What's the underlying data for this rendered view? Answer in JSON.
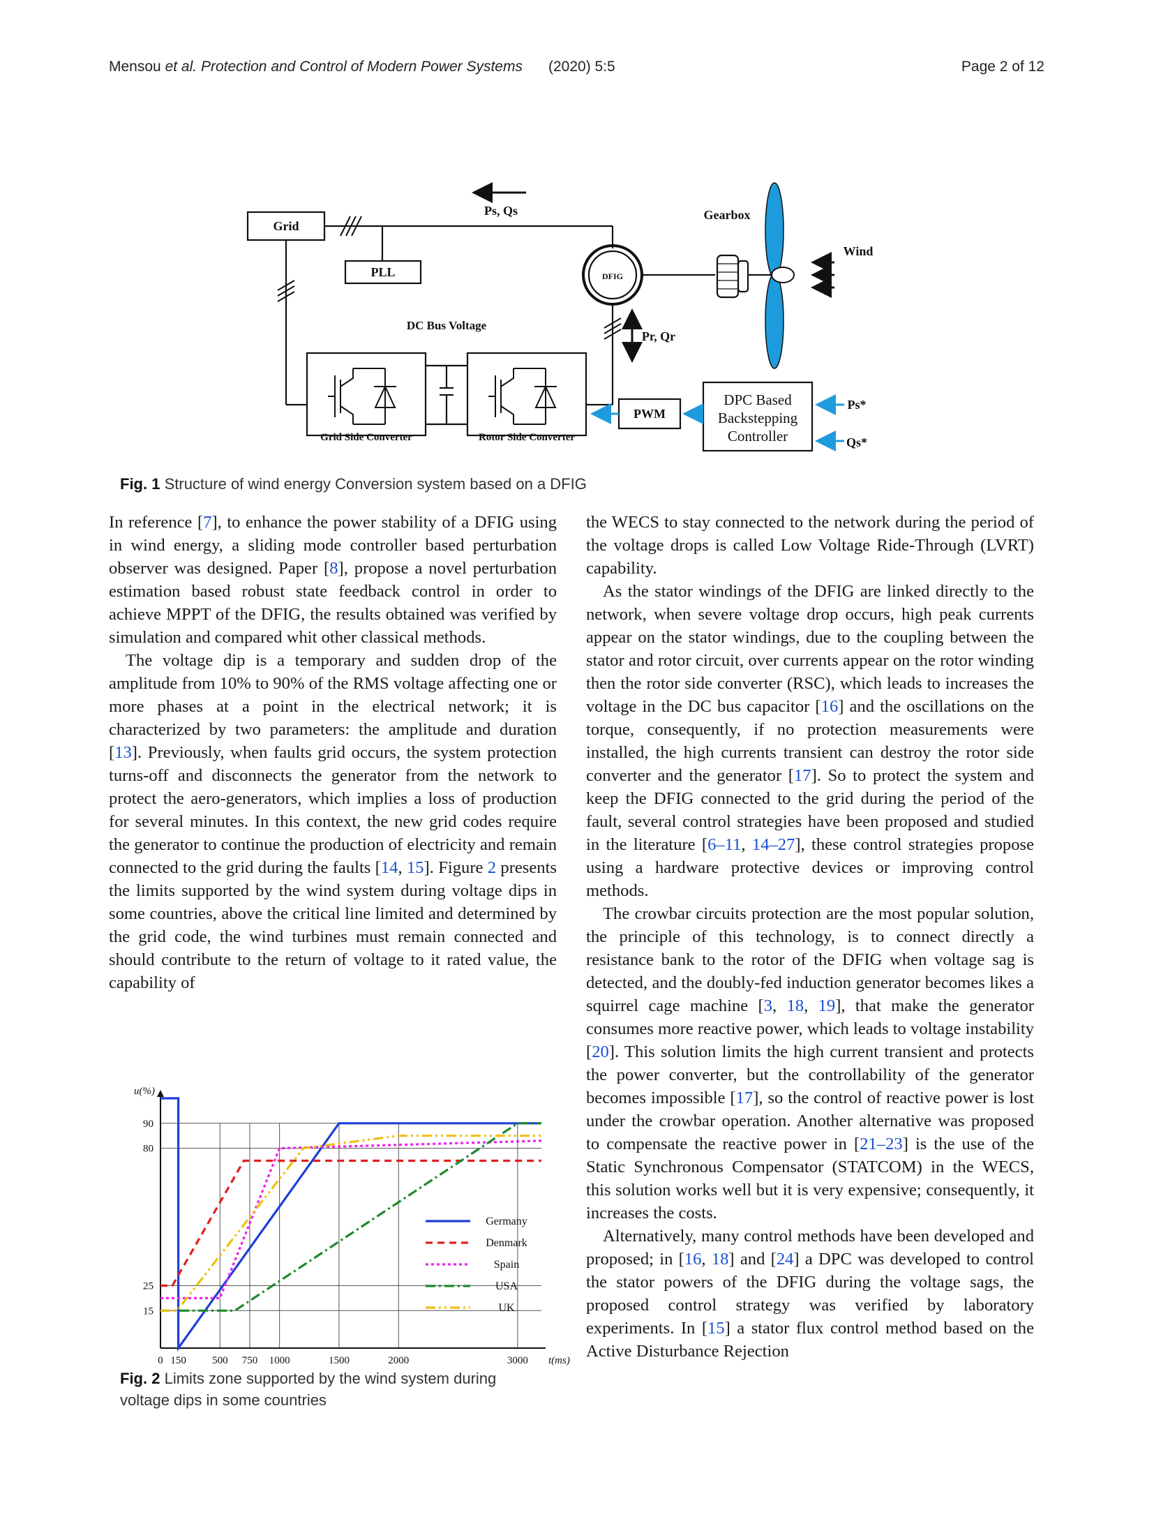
{
  "header": {
    "authors": "Mensou",
    "etal": "et al.",
    "journal": "Protection and Control of Modern Power Systems",
    "year_vol": "(2020) 5:5",
    "page": "Page 2 of 12"
  },
  "fig1": {
    "grid": "Grid",
    "pll": "PLL",
    "ps_qs": "Ps, Qs",
    "dfig": "DFIG",
    "gearbox": "Gearbox",
    "wind": "Wind",
    "dc_bus": "DC Bus Voltage",
    "pr_qr": "Pr, Qr",
    "gsc": "Grid Side Converter",
    "rsc": "Rotor Side Converter",
    "pwm": "PWM",
    "dpc_line1": "DPC Based",
    "dpc_line2": "Backstepping",
    "dpc_line3": "Controller",
    "ps_ref": "Ps*",
    "qs_ref": "Qs*",
    "caption_label": "Fig. 1",
    "caption_text": "Structure of wind energy Conversion system based on a DFIG"
  },
  "col_left": {
    "p1": [
      {
        "t": "In reference ["
      },
      {
        "ref": "7"
      },
      {
        "t": "], to enhance the power stability of a DFIG using in wind energy, a sliding mode controller based perturbation observer was designed. Paper ["
      },
      {
        "ref": "8"
      },
      {
        "t": "], propose a novel perturbation estimation based robust state feedback control in order to achieve MPPT of the DFIG, the results obtained was verified by simulation and compared whit other classical methods."
      }
    ],
    "p2": [
      {
        "t": "The voltage dip is a temporary and sudden drop of the amplitude from 10% to 90% of the RMS voltage affecting one or more phases at a point in the electrical network; it is characterized by two parameters: the amplitude and duration ["
      },
      {
        "ref": "13"
      },
      {
        "t": "]. Previously, when faults grid occurs, the system protection turns-off and disconnects the generator from the network to protect the aero-generators, which implies a loss of production for several minutes. In this context, the new grid codes require the generator to continue the production of electricity and remain connected to the grid during the faults ["
      },
      {
        "ref": "14"
      },
      {
        "t": ", "
      },
      {
        "ref": "15"
      },
      {
        "t": "]. Figure "
      },
      {
        "ref": "2"
      },
      {
        "t": " presents the limits supported by the wind system during voltage dips in some countries, above the critical line limited and determined by the grid code, the wind turbines must remain connected and should contribute to the return of voltage to it rated value, the capability of"
      }
    ]
  },
  "col_right": {
    "p1": [
      {
        "t": "the WECS to stay connected to the network during the period of the voltage drops is called Low Voltage Ride-Through (LVRT) capability."
      }
    ],
    "p2": [
      {
        "t": "As the stator windings of the DFIG are linked directly to the network, when severe voltage drop occurs, high peak currents appear on the stator windings, due to the coupling between the stator and rotor circuit, over currents appear on the rotor winding then the rotor side converter (RSC), which leads to increases the voltage in the DC bus capacitor ["
      },
      {
        "ref": "16"
      },
      {
        "t": "] and the oscillations on the torque, consequently, if no protection measurements were installed, the high currents transient can destroy the rotor side converter and the generator ["
      },
      {
        "ref": "17"
      },
      {
        "t": "]. So to protect the system and keep the DFIG connected to the grid during the period of the fault, several control strategies have been proposed and studied in the literature ["
      },
      {
        "ref": "6–11"
      },
      {
        "t": ", "
      },
      {
        "ref": "14–27"
      },
      {
        "t": "], these control strategies propose using a hardware protective devices or improving control methods."
      }
    ],
    "p3": [
      {
        "t": "The crowbar circuits protection are the most popular solution, the principle of this technology, is to connect directly a resistance bank to the rotor of the DFIG when voltage sag is detected, and the doubly-fed induction generator becomes likes a squirrel cage machine ["
      },
      {
        "ref": "3"
      },
      {
        "t": ", "
      },
      {
        "ref": "18"
      },
      {
        "t": ", "
      },
      {
        "ref": "19"
      },
      {
        "t": "], that make the generator consumes more reactive power, which leads to voltage instability ["
      },
      {
        "ref": "20"
      },
      {
        "t": "]. This solution limits the high current transient and protects the power converter, but the controllability of the generator becomes impossible ["
      },
      {
        "ref": "17"
      },
      {
        "t": "], so the control of reactive power is lost under the crowbar operation. Another alternative was proposed to compensate the reactive power in ["
      },
      {
        "ref": "21–23"
      },
      {
        "t": "] is the use of the Static Synchronous Compensator (STATCOM) in the WECS, this solution works well but it is very expensive; consequently, it increases the costs."
      }
    ],
    "p4": [
      {
        "t": "Alternatively, many control methods have been developed and proposed; in ["
      },
      {
        "ref": "16"
      },
      {
        "t": ", "
      },
      {
        "ref": "18"
      },
      {
        "t": "] and ["
      },
      {
        "ref": "24"
      },
      {
        "t": "] a DPC was developed to control the stator powers of the DFIG during the voltage sags, the proposed control strategy was verified by laboratory experiments. In ["
      },
      {
        "ref": "15"
      },
      {
        "t": "] a stator flux control method based on the Active Disturbance Rejection"
      }
    ]
  },
  "fig2": {
    "caption_label": "Fig. 2",
    "caption_text": "Limits zone supported by the wind system during voltage dips in some countries"
  },
  "chart_data": {
    "type": "line",
    "title": "",
    "xlabel": "t(ms)",
    "ylabel": "u(%)",
    "xlim": [
      0,
      3200
    ],
    "ylim": [
      0,
      100
    ],
    "x_ticks": [
      0,
      150,
      500,
      750,
      1000,
      1500,
      2000,
      3000
    ],
    "y_ticks": [
      15,
      25,
      80,
      90
    ],
    "legend_position": "right",
    "series": [
      {
        "name": "Germany",
        "color": "#1f3fd6",
        "dash": "solid",
        "x": [
          0,
          150,
          150,
          1500,
          3200
        ],
        "y": [
          100,
          100,
          0,
          90,
          90
        ]
      },
      {
        "name": "Denmark",
        "color": "#e02020",
        "dash": "10,7",
        "x": [
          0,
          100,
          700,
          3200
        ],
        "y": [
          25,
          25,
          75,
          75
        ]
      },
      {
        "name": "Spain",
        "color": "#ee22ee",
        "dash": "4,4",
        "x": [
          0,
          500,
          1000,
          3200
        ],
        "y": [
          20,
          20,
          80,
          83
        ]
      },
      {
        "name": "USA",
        "color": "#1c8a2a",
        "dash": "14,5,3,5",
        "x": [
          0,
          625,
          3000,
          3200
        ],
        "y": [
          15,
          15,
          90,
          90
        ]
      },
      {
        "name": "UK",
        "color": "#f0c010",
        "dash": "14,5,3,5,3,5",
        "x": [
          0,
          140,
          1200,
          2000,
          3200
        ],
        "y": [
          15,
          15,
          80,
          85,
          85
        ]
      }
    ]
  }
}
